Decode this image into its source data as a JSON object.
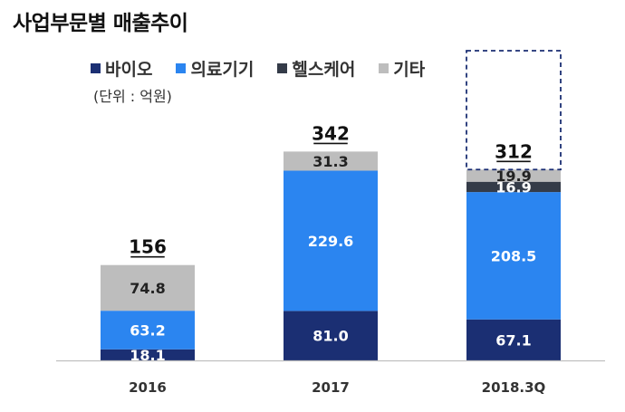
{
  "chart_data": {
    "type": "bar",
    "stacked": true,
    "title": "사업부문별 매출추이",
    "unit_note": "(단위 : 억원)",
    "categories": [
      "2016",
      "2017",
      "2018.3Q"
    ],
    "totals": [
      "156",
      "342",
      "312"
    ],
    "series": [
      {
        "name": "바이오",
        "color": "#1b2f73",
        "values": [
          18.1,
          81.0,
          67.1
        ],
        "labels": [
          "18.1",
          "81.0",
          "67.1"
        ],
        "label_color": "#ffffff"
      },
      {
        "name": "의료기기",
        "color": "#2b85f0",
        "values": [
          63.2,
          229.6,
          208.5
        ],
        "labels": [
          "63.2",
          "229.6",
          "208.5"
        ],
        "label_color": "#ffffff"
      },
      {
        "name": "헬스케어",
        "color": "#343b48",
        "values": [
          0,
          0,
          16.9
        ],
        "labels": [
          "",
          "",
          "16.9"
        ],
        "label_color": "#ffffff"
      },
      {
        "name": "기타",
        "color": "#bdbdbd",
        "values": [
          74.8,
          31.3,
          19.9
        ],
        "labels": [
          "74.8",
          "31.3",
          "19.9"
        ],
        "label_color": "#222222"
      }
    ],
    "dashed_outline_category": "2018.3Q",
    "legend_position": "top",
    "grid": false
  }
}
